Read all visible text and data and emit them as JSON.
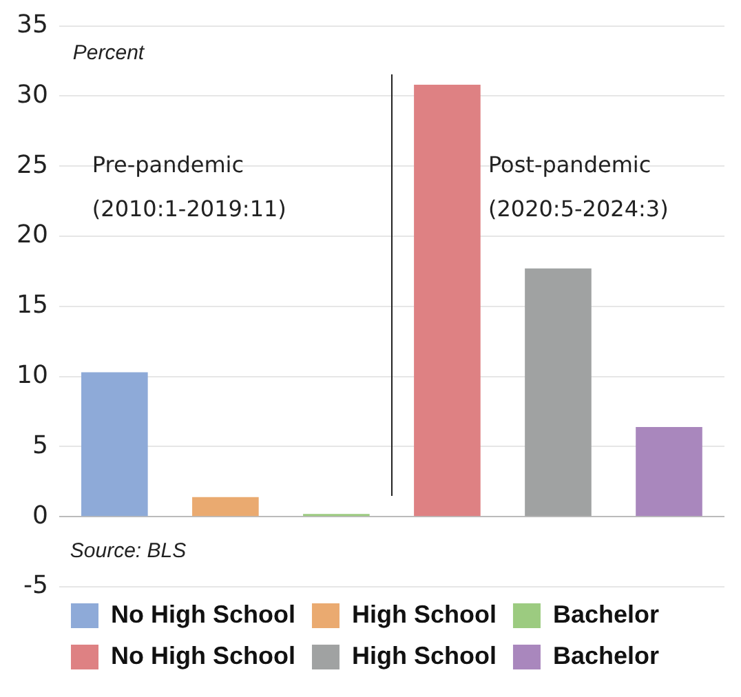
{
  "chart_data": {
    "type": "bar",
    "ylabel": "Percent",
    "categories": [
      null,
      null,
      null,
      null,
      null,
      null
    ],
    "series": [
      {
        "name": "No High School",
        "color": "#8eaad8",
        "values": [
          10.3,
          null,
          null,
          null,
          null,
          null
        ]
      },
      {
        "name": "High School",
        "color": "#eaaa70",
        "values": [
          null,
          1.4,
          null,
          null,
          null,
          null
        ]
      },
      {
        "name": "Bachelor",
        "color": "#9ccb80",
        "values": [
          null,
          null,
          0.2,
          null,
          null,
          null
        ]
      },
      {
        "name": "No High School",
        "color": "#de8183",
        "values": [
          null,
          null,
          null,
          30.8,
          null,
          null
        ]
      },
      {
        "name": "High School",
        "color": "#a0a2a2",
        "values": [
          null,
          null,
          null,
          null,
          17.7,
          null
        ]
      },
      {
        "name": "Bachelor",
        "color": "#a987bd",
        "values": [
          null,
          null,
          null,
          null,
          null,
          6.4
        ]
      }
    ],
    "ylim": [
      -5,
      35
    ],
    "yticks": [
      -5,
      0,
      5,
      10,
      15,
      20,
      25,
      30,
      35
    ],
    "grid": "y",
    "legend": "bottom",
    "annotations": [
      "Pre-pandemic (2010:1-2019:11)",
      "Post-pandemic (2020:5-2024:3)",
      "Source: BLS"
    ]
  }
}
